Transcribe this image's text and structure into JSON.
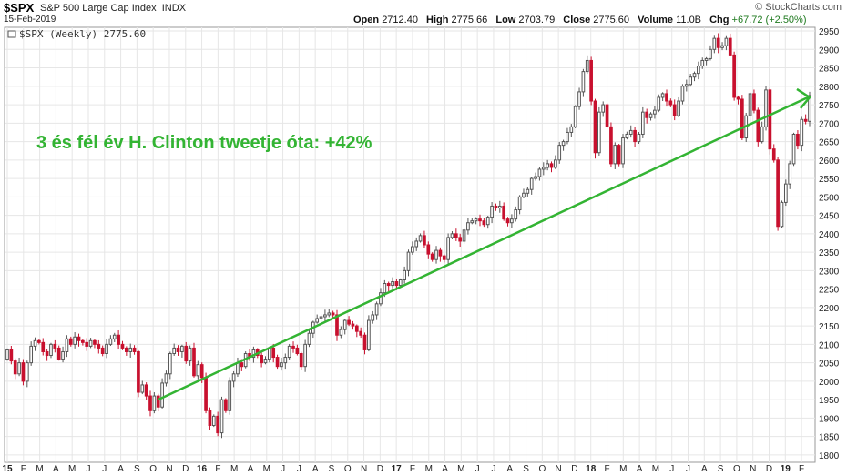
{
  "header": {
    "symbol": "$SPX",
    "name": "S&P 500 Large Cap Index",
    "exchange": "INDX",
    "date": "15-Feb-2019",
    "source": "© StockCharts.com",
    "series_label": "$SPX (Weekly) 2775.60",
    "open_label": "Open",
    "open": "2712.40",
    "high_label": "High",
    "high": "2775.66",
    "low_label": "Low",
    "low": "2703.79",
    "close_label": "Close",
    "close": "2775.60",
    "volume_label": "Volume",
    "volume": "11.0B",
    "chg_label": "Chg",
    "chg": "+67.72 (+2.50%)"
  },
  "annotation": {
    "text": "3 és fél év H. Clinton tweetje óta: +42%",
    "color": "#33b433"
  },
  "colors": {
    "up": "#555555",
    "down": "#c8102e",
    "grid": "#e6e6e6",
    "trend": "#33b433"
  },
  "chart_data": {
    "type": "candlestick",
    "title": "$SPX (Weekly) 2775.60",
    "period": "weekly",
    "ylim": [
      1780,
      2960
    ],
    "y_ticks": [
      1800,
      1850,
      1900,
      1950,
      2000,
      2050,
      2100,
      2150,
      2200,
      2250,
      2300,
      2350,
      2400,
      2450,
      2500,
      2550,
      2600,
      2650,
      2700,
      2750,
      2800,
      2850,
      2900,
      2950
    ],
    "x_ticks": [
      "15",
      "F",
      "M",
      "A",
      "M",
      "J",
      "J",
      "A",
      "S",
      "O",
      "N",
      "D",
      "16",
      "F",
      "M",
      "A",
      "M",
      "J",
      "J",
      "A",
      "S",
      "O",
      "N",
      "D",
      "17",
      "F",
      "M",
      "A",
      "M",
      "J",
      "J",
      "A",
      "S",
      "O",
      "N",
      "D",
      "18",
      "F",
      "M",
      "A",
      "M",
      "J",
      "J",
      "A",
      "S",
      "O",
      "N",
      "D",
      "19",
      "F"
    ],
    "grid": true,
    "trendline": {
      "from": {
        "x": "2015-09-28",
        "y": 1950
      },
      "to": {
        "x": "2019-02-15",
        "y": 2770
      }
    },
    "series": [
      {
        "name": "$SPX",
        "points": [
          [
            2060,
            2085
          ],
          [
            2085,
            2055
          ],
          [
            2055,
            2020
          ],
          [
            2020,
            2050
          ],
          [
            2050,
            2000
          ],
          [
            2000,
            2050
          ],
          [
            2050,
            2095
          ],
          [
            2095,
            2110
          ],
          [
            2110,
            2105
          ],
          [
            2105,
            2080
          ],
          [
            2080,
            2070
          ],
          [
            2070,
            2100
          ],
          [
            2100,
            2090
          ],
          [
            2090,
            2060
          ],
          [
            2060,
            2080
          ],
          [
            2080,
            2115
          ],
          [
            2115,
            2100
          ],
          [
            2100,
            2120
          ],
          [
            2120,
            2110
          ],
          [
            2110,
            2105
          ],
          [
            2105,
            2095
          ],
          [
            2095,
            2110
          ],
          [
            2110,
            2100
          ],
          [
            2100,
            2090
          ],
          [
            2090,
            2075
          ],
          [
            2075,
            2100
          ],
          [
            2100,
            2115
          ],
          [
            2115,
            2125
          ],
          [
            2125,
            2100
          ],
          [
            2100,
            2090
          ],
          [
            2090,
            2080
          ],
          [
            2080,
            2090
          ],
          [
            2090,
            2080
          ],
          [
            2080,
            1970
          ],
          [
            1970,
            1990
          ],
          [
            1990,
            1960
          ],
          [
            1960,
            1920
          ],
          [
            1920,
            1960
          ],
          [
            1960,
            1930
          ],
          [
            1930,
            1995
          ],
          [
            1995,
            2020
          ],
          [
            2020,
            2075
          ],
          [
            2075,
            2090
          ],
          [
            2090,
            2080
          ],
          [
            2080,
            2095
          ],
          [
            2095,
            2055
          ],
          [
            2055,
            2090
          ],
          [
            2090,
            2015
          ],
          [
            2015,
            2045
          ],
          [
            2045,
            2010
          ],
          [
            2010,
            1920
          ],
          [
            1920,
            1880
          ],
          [
            1880,
            1905
          ],
          [
            1905,
            1860
          ],
          [
            1860,
            1950
          ],
          [
            1950,
            1920
          ],
          [
            1920,
            2000
          ],
          [
            2000,
            2020
          ],
          [
            2020,
            2050
          ],
          [
            2050,
            2040
          ],
          [
            2040,
            2075
          ],
          [
            2075,
            2065
          ],
          [
            2065,
            2085
          ],
          [
            2085,
            2070
          ],
          [
            2070,
            2050
          ],
          [
            2050,
            2060
          ],
          [
            2060,
            2090
          ],
          [
            2090,
            2065
          ],
          [
            2065,
            2040
          ],
          [
            2040,
            2050
          ],
          [
            2050,
            2065
          ],
          [
            2065,
            2095
          ],
          [
            2095,
            2090
          ],
          [
            2090,
            2075
          ],
          [
            2075,
            2040
          ],
          [
            2040,
            2100
          ],
          [
            2100,
            2130
          ],
          [
            2130,
            2160
          ],
          [
            2160,
            2170
          ],
          [
            2170,
            2175
          ],
          [
            2175,
            2180
          ],
          [
            2180,
            2185
          ],
          [
            2185,
            2180
          ],
          [
            2180,
            2125
          ],
          [
            2125,
            2140
          ],
          [
            2140,
            2165
          ],
          [
            2165,
            2155
          ],
          [
            2155,
            2150
          ],
          [
            2150,
            2135
          ],
          [
            2135,
            2125
          ],
          [
            2125,
            2085
          ],
          [
            2085,
            2165
          ],
          [
            2165,
            2180
          ],
          [
            2180,
            2210
          ],
          [
            2210,
            2240
          ],
          [
            2240,
            2265
          ],
          [
            2265,
            2260
          ],
          [
            2260,
            2270
          ],
          [
            2270,
            2260
          ],
          [
            2260,
            2275
          ],
          [
            2275,
            2300
          ],
          [
            2300,
            2350
          ],
          [
            2350,
            2365
          ],
          [
            2365,
            2380
          ],
          [
            2380,
            2395
          ],
          [
            2395,
            2370
          ],
          [
            2370,
            2345
          ],
          [
            2345,
            2330
          ],
          [
            2330,
            2355
          ],
          [
            2355,
            2340
          ],
          [
            2340,
            2330
          ],
          [
            2330,
            2390
          ],
          [
            2390,
            2400
          ],
          [
            2400,
            2390
          ],
          [
            2390,
            2380
          ],
          [
            2380,
            2410
          ],
          [
            2410,
            2430
          ],
          [
            2430,
            2435
          ],
          [
            2435,
            2440
          ],
          [
            2440,
            2435
          ],
          [
            2435,
            2425
          ],
          [
            2425,
            2445
          ],
          [
            2445,
            2475
          ],
          [
            2475,
            2470
          ],
          [
            2470,
            2475
          ],
          [
            2475,
            2440
          ],
          [
            2440,
            2430
          ],
          [
            2430,
            2440
          ],
          [
            2440,
            2465
          ],
          [
            2465,
            2500
          ],
          [
            2500,
            2510
          ],
          [
            2510,
            2520
          ],
          [
            2520,
            2550
          ],
          [
            2550,
            2555
          ],
          [
            2555,
            2575
          ],
          [
            2575,
            2580
          ],
          [
            2580,
            2590
          ],
          [
            2590,
            2580
          ],
          [
            2580,
            2600
          ],
          [
            2600,
            2640
          ],
          [
            2640,
            2650
          ],
          [
            2650,
            2675
          ],
          [
            2675,
            2690
          ],
          [
            2690,
            2745
          ],
          [
            2745,
            2785
          ],
          [
            2785,
            2840
          ],
          [
            2840,
            2870
          ],
          [
            2870,
            2760
          ],
          [
            2760,
            2620
          ],
          [
            2620,
            2730
          ],
          [
            2730,
            2750
          ],
          [
            2750,
            2690
          ],
          [
            2690,
            2590
          ],
          [
            2590,
            2640
          ],
          [
            2640,
            2590
          ],
          [
            2590,
            2660
          ],
          [
            2660,
            2670
          ],
          [
            2670,
            2680
          ],
          [
            2680,
            2650
          ],
          [
            2650,
            2670
          ],
          [
            2670,
            2730
          ],
          [
            2730,
            2715
          ],
          [
            2715,
            2725
          ],
          [
            2725,
            2735
          ],
          [
            2735,
            2770
          ],
          [
            2770,
            2780
          ],
          [
            2780,
            2760
          ],
          [
            2760,
            2750
          ],
          [
            2750,
            2720
          ],
          [
            2720,
            2760
          ],
          [
            2760,
            2800
          ],
          [
            2800,
            2805
          ],
          [
            2805,
            2825
          ],
          [
            2825,
            2835
          ],
          [
            2835,
            2855
          ],
          [
            2855,
            2870
          ],
          [
            2870,
            2875
          ],
          [
            2875,
            2900
          ],
          [
            2900,
            2930
          ],
          [
            2930,
            2905
          ],
          [
            2905,
            2910
          ],
          [
            2910,
            2930
          ],
          [
            2930,
            2885
          ],
          [
            2885,
            2770
          ],
          [
            2770,
            2765
          ],
          [
            2765,
            2660
          ],
          [
            2660,
            2720
          ],
          [
            2720,
            2780
          ],
          [
            2780,
            2735
          ],
          [
            2735,
            2650
          ],
          [
            2650,
            2690
          ],
          [
            2690,
            2790
          ],
          [
            2790,
            2630
          ],
          [
            2630,
            2600
          ],
          [
            2600,
            2420
          ],
          [
            2420,
            2485
          ],
          [
            2485,
            2535
          ],
          [
            2535,
            2590
          ],
          [
            2590,
            2670
          ],
          [
            2670,
            2640
          ],
          [
            2640,
            2710
          ],
          [
            2710,
            2705
          ],
          [
            2705,
            2775
          ]
        ]
      }
    ]
  }
}
